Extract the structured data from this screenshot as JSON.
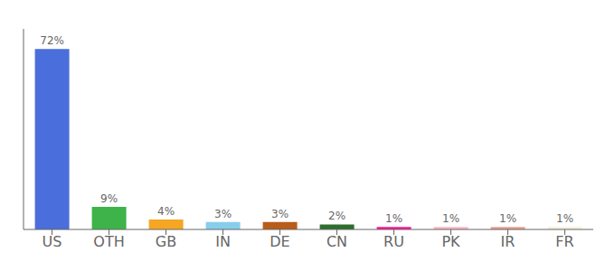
{
  "chart_data": {
    "type": "bar",
    "categories": [
      "US",
      "OTH",
      "GB",
      "IN",
      "DE",
      "CN",
      "RU",
      "PK",
      "IR",
      "FR"
    ],
    "values": [
      72,
      9,
      4,
      3,
      3,
      2,
      1,
      1,
      1,
      1
    ],
    "value_labels": [
      "72%",
      "9%",
      "4%",
      "3%",
      "3%",
      "2%",
      "1%",
      "1%",
      "1%",
      "1%"
    ],
    "colors": [
      "#4a6edb",
      "#3db34a",
      "#f5a623",
      "#87ceeb",
      "#b85c1a",
      "#2d6e2d",
      "#ff1493",
      "#ffb6c1",
      "#e8a090",
      "#f5f0d8"
    ],
    "ylim": [
      0,
      80
    ],
    "yticks": [],
    "grid": false,
    "data_labels": true,
    "tick_labels": "x"
  }
}
